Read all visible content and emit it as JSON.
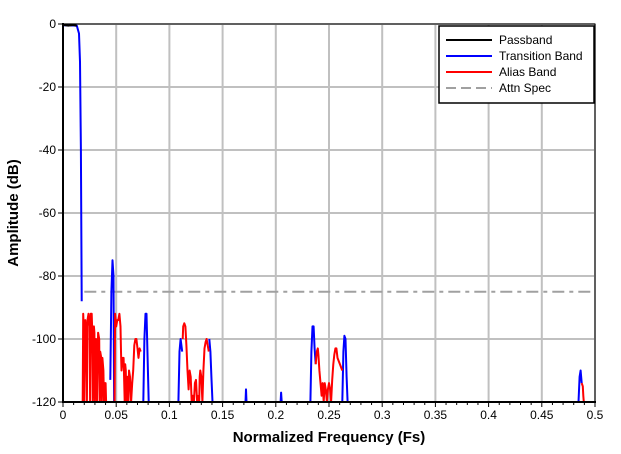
{
  "chart_data": {
    "type": "line",
    "title": "",
    "xlabel": "Normalized Frequency (Fs)",
    "ylabel": "Amplitude (dB)",
    "xlim": [
      0,
      0.5
    ],
    "ylim": [
      -120,
      0
    ],
    "grid": true,
    "legend_placement": "top-right",
    "x_ticks": [
      "0",
      "0.05",
      "0.1",
      "0.15",
      "0.2",
      "0.25",
      "0.3",
      "0.35",
      "0.4",
      "0.45",
      "0.5"
    ],
    "y_ticks": [
      "0",
      "-20",
      "-40",
      "-60",
      "-80",
      "-100",
      "-120"
    ],
    "series": [
      {
        "name": "Passband",
        "color": "#000000",
        "style": "solid",
        "points": [
          [
            0,
            -0.3
          ],
          [
            0.005,
            -0.5
          ],
          [
            0.01,
            -0.3
          ],
          [
            0.013,
            -0.6
          ]
        ]
      },
      {
        "name": "Transition Band",
        "color": "#0000ff",
        "style": "solid",
        "points": [
          [
            0,
            -0.4
          ],
          [
            0.013,
            -0.5
          ],
          [
            0.015,
            -3
          ],
          [
            0.016,
            -12
          ],
          [
            0.0168,
            -40
          ],
          [
            0.0173,
            -70
          ],
          [
            0.0176,
            -88
          ],
          null,
          [
            0.0445,
            -113
          ],
          [
            0.0455,
            -85
          ],
          [
            0.0465,
            -75
          ],
          [
            0.0475,
            -80
          ],
          [
            0.048,
            -120
          ],
          null,
          [
            0.0755,
            -120
          ],
          [
            0.0765,
            -100
          ],
          [
            0.0775,
            -92
          ],
          [
            0.0785,
            -92
          ],
          [
            0.0795,
            -106
          ],
          [
            0.0805,
            -120
          ],
          null,
          [
            0.1085,
            -120
          ],
          [
            0.1095,
            -104
          ],
          [
            0.1105,
            -100
          ],
          [
            0.112,
            -104
          ],
          null,
          [
            0.1375,
            -100
          ],
          [
            0.1385,
            -104
          ],
          [
            0.1395,
            -112
          ],
          [
            0.1405,
            -120
          ],
          null,
          [
            0.1715,
            -120
          ],
          [
            0.172,
            -116
          ],
          [
            0.1725,
            -120
          ],
          null,
          [
            0.2045,
            -120
          ],
          [
            0.205,
            -117
          ],
          [
            0.2055,
            -120
          ],
          null,
          [
            0.2325,
            -120
          ],
          [
            0.2335,
            -104
          ],
          [
            0.2345,
            -96
          ],
          [
            0.2355,
            -96
          ],
          [
            0.2365,
            -103
          ],
          [
            0.2375,
            -108
          ],
          null,
          [
            0.2625,
            -120
          ],
          [
            0.2635,
            -104
          ],
          [
            0.2645,
            -99
          ],
          [
            0.2655,
            -100
          ],
          [
            0.2665,
            -112
          ],
          [
            0.2675,
            -120
          ],
          null,
          [
            0.4845,
            -120
          ],
          [
            0.4855,
            -112
          ],
          [
            0.4865,
            -110
          ],
          [
            0.4875,
            -114
          ]
        ]
      },
      {
        "name": "Alias Band",
        "color": "#ff0000",
        "style": "solid",
        "points": [
          [
            0.0185,
            -120
          ],
          [
            0.019,
            -92
          ],
          [
            0.0195,
            -96
          ],
          [
            0.02,
            -120
          ],
          [
            0.021,
            -94
          ],
          [
            0.022,
            -98
          ],
          [
            0.0225,
            -120
          ],
          [
            0.023,
            -94
          ],
          [
            0.024,
            -92
          ],
          [
            0.025,
            -96
          ],
          [
            0.0255,
            -120
          ],
          [
            0.026,
            -92
          ],
          [
            0.027,
            -92
          ],
          [
            0.0275,
            -98
          ],
          [
            0.028,
            -120
          ],
          [
            0.029,
            -96
          ],
          [
            0.0295,
            -98
          ],
          [
            0.03,
            -120
          ],
          [
            0.031,
            -100
          ],
          [
            0.0315,
            -106
          ],
          [
            0.032,
            -120
          ],
          [
            0.033,
            -98
          ],
          [
            0.034,
            -100
          ],
          [
            0.0345,
            -120
          ],
          [
            0.035,
            -104
          ],
          [
            0.036,
            -106
          ],
          [
            0.0365,
            -120
          ],
          [
            0.037,
            -106
          ],
          [
            0.038,
            -110
          ],
          [
            0.0385,
            -120
          ],
          [
            0.039,
            -114
          ],
          [
            0.04,
            -114
          ],
          [
            0.0405,
            -120
          ],
          null,
          [
            0.0485,
            -120
          ],
          [
            0.049,
            -92
          ],
          [
            0.05,
            -96
          ],
          [
            0.051,
            -94
          ],
          [
            0.052,
            -94
          ],
          [
            0.053,
            -92
          ],
          [
            0.054,
            -96
          ],
          [
            0.0545,
            -104
          ],
          [
            0.055,
            -110
          ],
          [
            0.056,
            -106
          ],
          [
            0.057,
            -106
          ],
          [
            0.058,
            -120
          ],
          [
            0.0585,
            -108
          ],
          [
            0.059,
            -110
          ],
          [
            0.0595,
            -120
          ],
          [
            0.0605,
            -112
          ],
          [
            0.061,
            -120
          ],
          [
            0.0615,
            -120
          ],
          [
            0.062,
            -110
          ],
          [
            0.063,
            -112
          ],
          [
            0.064,
            -120
          ],
          [
            0.065,
            -114
          ],
          [
            0.066,
            -110
          ],
          [
            0.067,
            -102
          ],
          [
            0.068,
            -100
          ],
          [
            0.069,
            -100
          ],
          [
            0.07,
            -103
          ],
          [
            0.071,
            -106
          ],
          [
            0.072,
            -103
          ],
          [
            0.073,
            -104
          ],
          null,
          [
            0.1125,
            -100
          ],
          [
            0.113,
            -96
          ],
          [
            0.114,
            -95
          ],
          [
            0.115,
            -96
          ],
          [
            0.116,
            -102
          ],
          [
            0.117,
            -110
          ],
          [
            0.118,
            -116
          ],
          [
            0.119,
            -110
          ],
          [
            0.12,
            -112
          ],
          [
            0.121,
            -120
          ],
          [
            0.122,
            -118
          ],
          [
            0.123,
            -120
          ],
          [
            0.124,
            -114
          ],
          [
            0.125,
            -113
          ],
          [
            0.126,
            -120
          ],
          [
            0.1265,
            -118
          ],
          [
            0.127,
            -120
          ],
          null,
          [
            0.128,
            -120
          ],
          [
            0.1285,
            -112
          ],
          [
            0.129,
            -110
          ],
          [
            0.13,
            -112
          ],
          [
            0.131,
            -120
          ],
          [
            0.132,
            -110
          ],
          [
            0.133,
            -103
          ],
          [
            0.134,
            -101
          ],
          [
            0.135,
            -100
          ],
          [
            0.136,
            -102
          ],
          [
            0.137,
            -104
          ],
          null,
          [
            0.2375,
            -108
          ],
          [
            0.2385,
            -104
          ],
          [
            0.2395,
            -103
          ],
          [
            0.24,
            -105
          ],
          [
            0.241,
            -110
          ],
          [
            0.242,
            -114
          ],
          [
            0.243,
            -118
          ],
          [
            0.244,
            -114
          ],
          [
            0.245,
            -120
          ],
          [
            0.246,
            -114
          ],
          [
            0.247,
            -116
          ],
          [
            0.248,
            -120
          ],
          [
            0.249,
            -116
          ],
          [
            0.25,
            -114
          ],
          [
            0.251,
            -116
          ],
          [
            0.252,
            -120
          ],
          [
            0.253,
            -113
          ],
          [
            0.254,
            -108
          ],
          [
            0.255,
            -105
          ],
          [
            0.256,
            -103
          ],
          [
            0.257,
            -103
          ],
          [
            0.258,
            -106
          ],
          [
            0.2625,
            -110
          ],
          null,
          [
            0.4875,
            -114
          ],
          [
            0.4885,
            -115
          ],
          [
            0.489,
            -118
          ],
          [
            0.4895,
            -120
          ]
        ]
      },
      {
        "name": "Attn Spec",
        "color": "#a0a0a0",
        "style": "dashdot",
        "points": [
          [
            0.02,
            -85
          ],
          [
            0.5,
            -85
          ]
        ]
      }
    ]
  }
}
